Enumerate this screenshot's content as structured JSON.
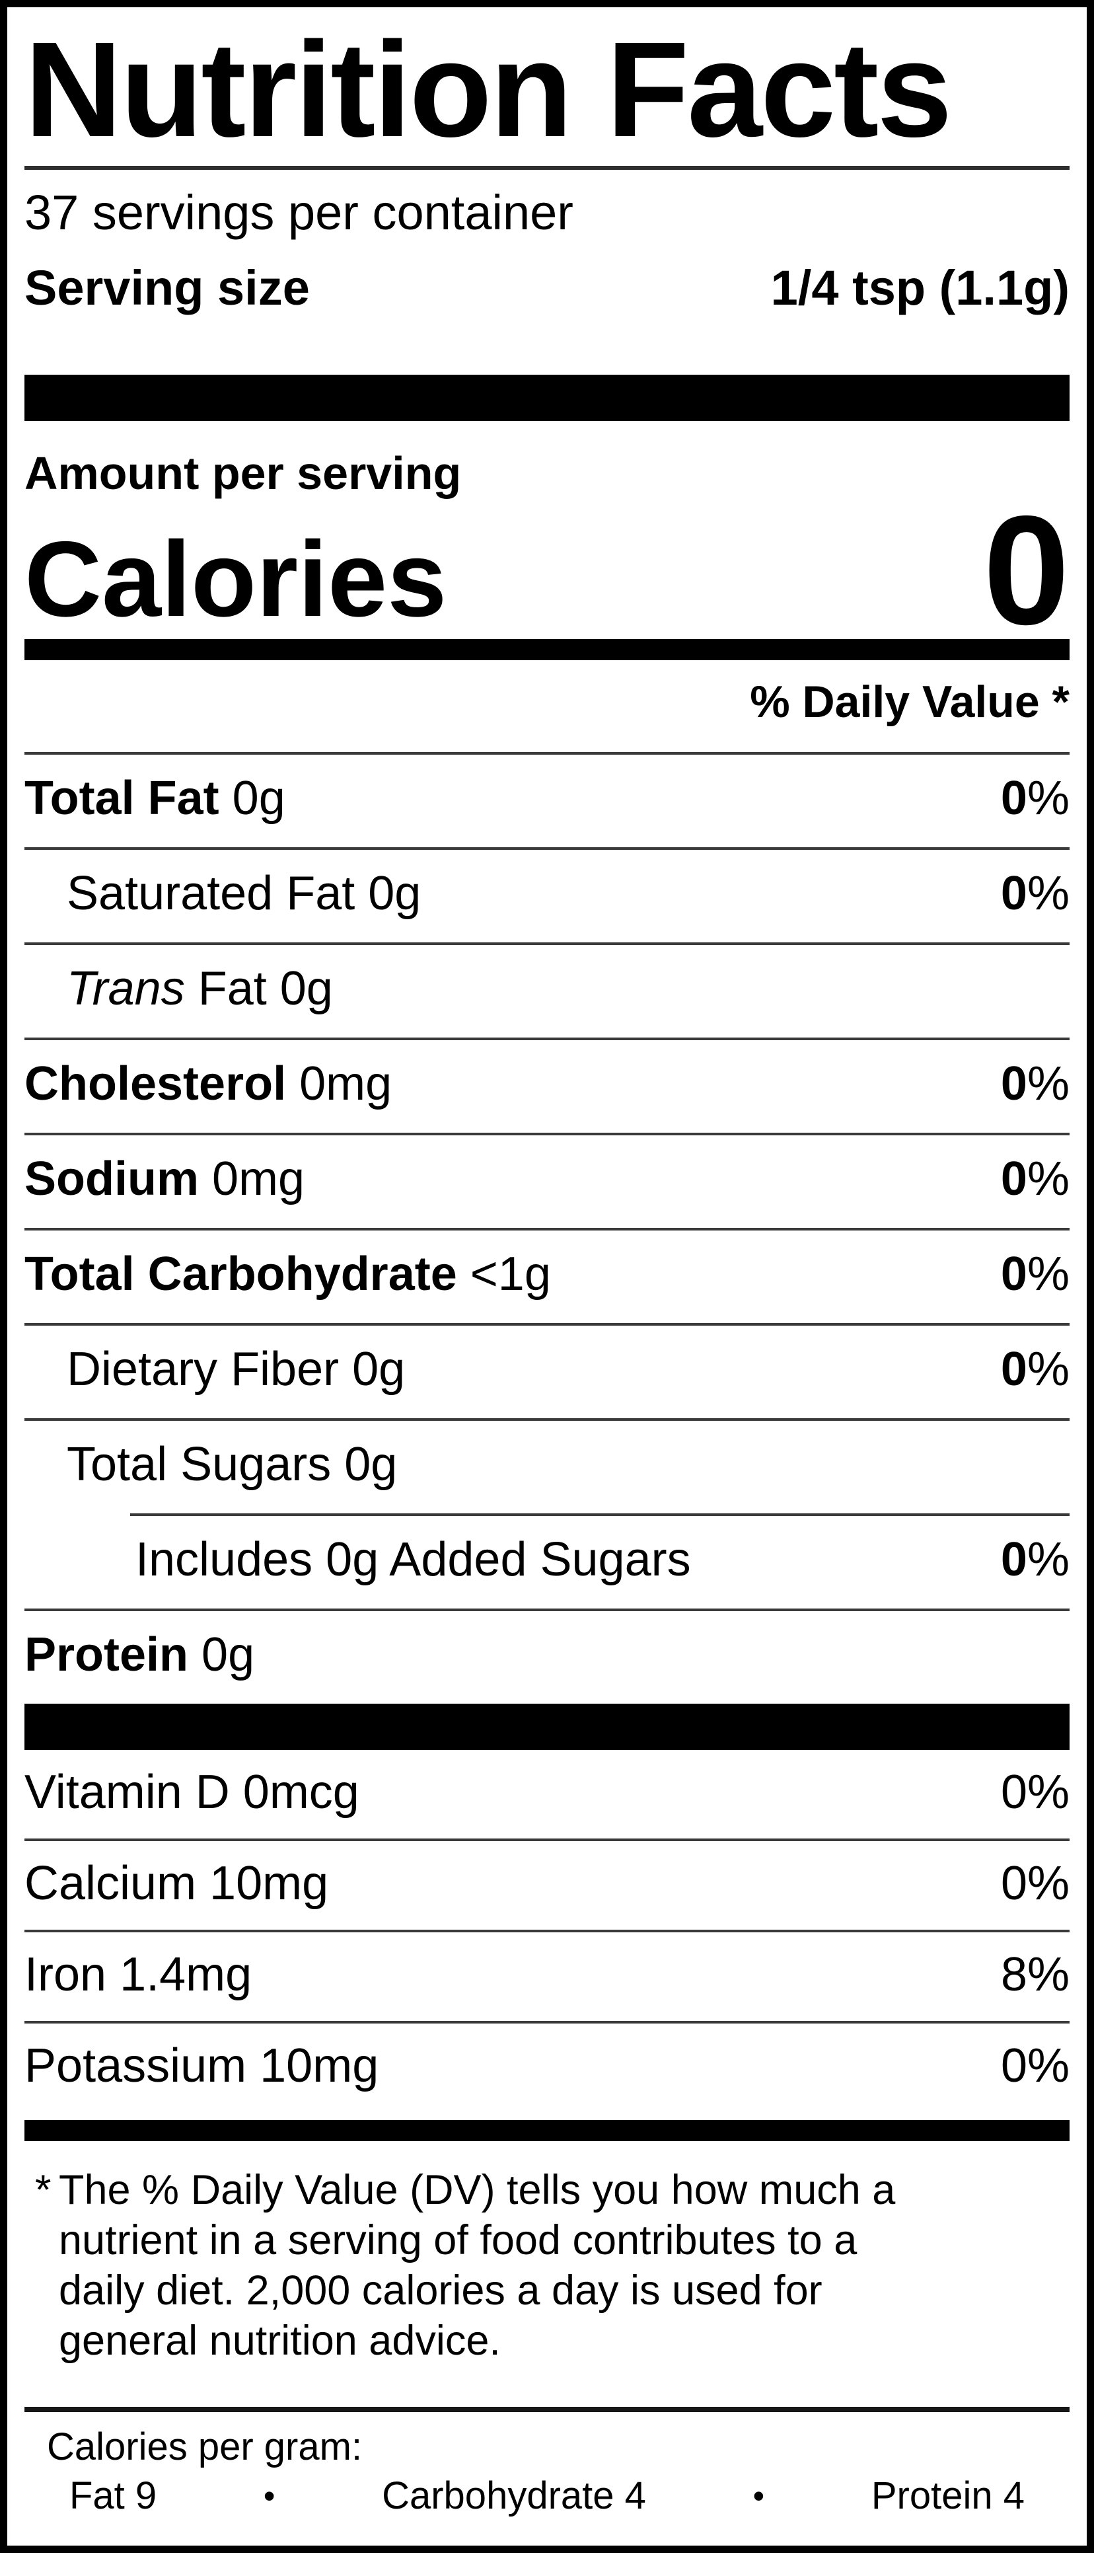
{
  "colors": {
    "text": "#000000",
    "background": "#ffffff",
    "bar": "#000000",
    "rule": "#3a3a3a"
  },
  "nutrition_label": {
    "title": "Nutrition Facts",
    "servings_per_container": "37 servings per container",
    "serving_size": {
      "label": "Serving size",
      "value": "1/4 tsp (1.1g)"
    },
    "amount_per_serving": "Amount per serving",
    "calories": {
      "label": "Calories",
      "value": "0"
    },
    "daily_value_header": "% Daily Value *",
    "nutrient_rows": [
      {
        "bold_name": "Total Fat",
        "rest": " 0g",
        "pct_num": "0",
        "pct_sym": "%"
      },
      {
        "name": "Saturated Fat 0g",
        "pct_num": "0",
        "pct_sym": "%"
      },
      {
        "italic_name": "Trans",
        "rest": " Fat 0g"
      },
      {
        "bold_name": "Cholesterol",
        "rest": " 0mg",
        "pct_num": "0",
        "pct_sym": "%"
      },
      {
        "bold_name": "Sodium",
        "rest": " 0mg",
        "pct_num": "0",
        "pct_sym": "%"
      },
      {
        "bold_name": "Total Carbohydrate",
        "rest": " <1g",
        "pct_num": "0",
        "pct_sym": "%"
      },
      {
        "name": "Dietary Fiber 0g",
        "pct_num": "0",
        "pct_sym": "%"
      },
      {
        "name": "Total Sugars 0g"
      },
      {
        "name": "Includes 0g Added Sugars",
        "pct_num": "0",
        "pct_sym": "%"
      },
      {
        "bold_name": "Protein",
        "rest": " 0g"
      }
    ],
    "vitamin_rows": [
      {
        "name": "Vitamin D 0mcg",
        "pct": "0%"
      },
      {
        "name": "Calcium 10mg",
        "pct": "0%"
      },
      {
        "name": "Iron 1.4mg",
        "pct": "8%"
      },
      {
        "name": "Potassium 10mg",
        "pct": "0%"
      }
    ],
    "footnote": {
      "asterisk": "*",
      "lines": [
        "The % Daily Value (DV) tells you how much a",
        "nutrient in a serving of food contributes to a",
        "daily diet. 2,000 calories a day is used for",
        "general nutrition advice."
      ]
    },
    "calories_per_gram": {
      "label": "Calories per gram:",
      "fat": "Fat 9",
      "bullet1": "•",
      "carb": "Carbohydrate 4",
      "bullet2": "•",
      "protein": "Protein 4"
    }
  }
}
